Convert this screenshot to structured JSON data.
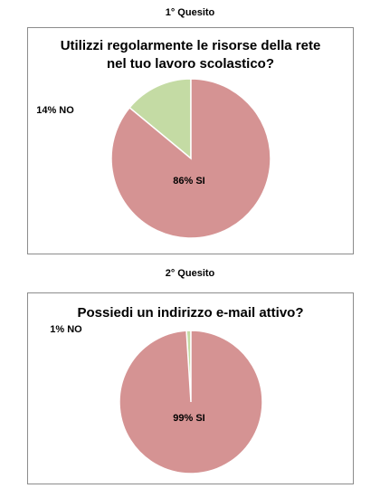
{
  "sections": [
    {
      "heading": "1° Quesito"
    },
    {
      "heading": "2° Quesito"
    }
  ],
  "chart_data": [
    {
      "type": "pie",
      "title": [
        "Utilizzi regolarmente le risorse della rete",
        "nel tuo lavoro scolastico?"
      ],
      "slices": [
        {
          "label": "NO",
          "value": 14,
          "text": "14% NO",
          "color": "#c4dba4"
        },
        {
          "label": "SI",
          "value": 86,
          "text": "86% SI",
          "color": "#d59393"
        }
      ]
    },
    {
      "type": "pie",
      "title": [
        "Possiedi un indirizzo e-mail attivo?"
      ],
      "slices": [
        {
          "label": "NO",
          "value": 1,
          "text": "1% NO",
          "color": "#c4dba4"
        },
        {
          "label": "SI",
          "value": 99,
          "text": "99% SI",
          "color": "#d59393"
        }
      ]
    }
  ],
  "colors": {
    "stroke": "#ffffff",
    "border": "#8c8c8c"
  }
}
